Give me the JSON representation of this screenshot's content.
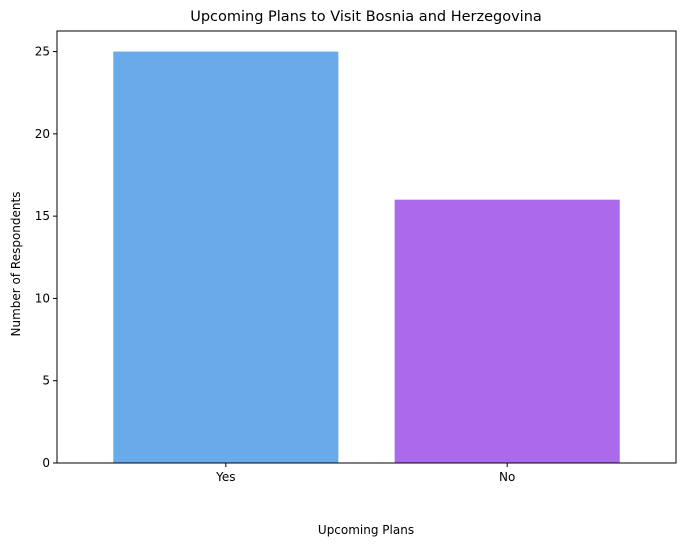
{
  "chart_data": {
    "type": "bar",
    "title": "Upcoming Plans to Visit Bosnia and Herzegovina",
    "xlabel": "Upcoming Plans",
    "ylabel": "Number of Respondents",
    "categories": [
      "Yes",
      "No"
    ],
    "values": [
      25,
      16
    ],
    "colors": [
      "#69aaeb",
      "#aa6aeb"
    ],
    "ylim": [
      0,
      26.25
    ],
    "yticks": [
      0,
      5,
      10,
      15,
      20,
      25
    ],
    "grid": false,
    "legend": "none"
  }
}
